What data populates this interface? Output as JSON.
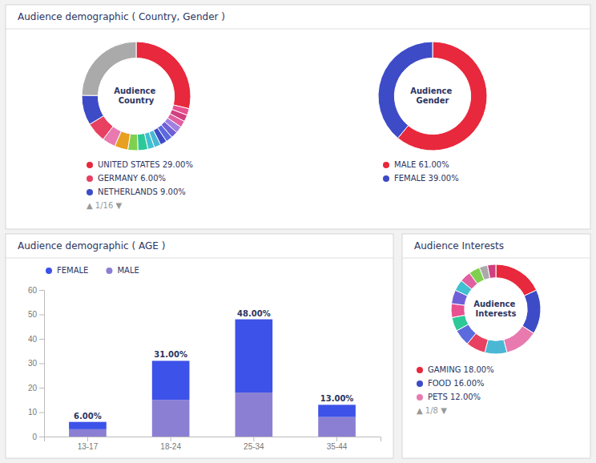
{
  "chart_data": [
    {
      "type": "donut",
      "title": "Audience demographic ( Country, Gender )",
      "categories": [
        "UNITED STATES 29.00%",
        null,
        null,
        null,
        null,
        null,
        null,
        null,
        null,
        null,
        null,
        null,
        null,
        null,
        "GERMANY 6.00%",
        "NETHERLANDS 9.00%",
        null
      ],
      "values": [
        29,
        2,
        2,
        2,
        2,
        2,
        2,
        2,
        2,
        2,
        3,
        3,
        4,
        4,
        6,
        9,
        25
      ],
      "colors": [
        "#e8283c",
        "#e85090",
        "#d04080",
        "#e060a0",
        "#a080e0",
        "#7060d8",
        "#5b6bde",
        "#3d4bc7",
        "#4ab8d4",
        "#40c0d0",
        "#2dc898",
        "#80d050",
        "#e8a020",
        "#e87ab0",
        "#e84060",
        "#3d4bc7",
        "#aaaaaa"
      ],
      "legend": "bottom",
      "annotations": [
        "Audience\nCountry",
        "▲ 1/16 ▼"
      ]
    },
    {
      "type": "donut",
      "categories": [
        "MALE 61.00%",
        "FEMALE 39.00%"
      ],
      "values": [
        61,
        39
      ],
      "colors": [
        "#e8283c",
        "#3d4bc7"
      ],
      "legend": "bottom",
      "annotations": [
        "Audience\nGender"
      ]
    },
    {
      "type": "bar",
      "title": "Audience demographic ( AGE )",
      "categories": [
        "13-17",
        "18-24",
        "25-34",
        "35-44"
      ],
      "stacked": true,
      "series": [
        {
          "name": "MALE",
          "color": "#8b7fd4",
          "values": [
            3,
            15,
            18,
            8
          ]
        },
        {
          "name": "FEMALE",
          "color": "#3d52e8",
          "values": [
            3,
            16,
            30,
            5
          ]
        }
      ],
      "totals": [
        6,
        31,
        48,
        13
      ],
      "total_labels": [
        "6.00%",
        "31.00%",
        "48.00%",
        "13.00%"
      ],
      "ylim": [
        0,
        60
      ],
      "yticks": [
        0,
        10,
        20,
        30,
        40,
        50,
        60
      ],
      "grid": false,
      "legend": "top"
    },
    {
      "type": "donut",
      "title": "Audience Interests",
      "categories": [
        "GAMING 18.00%",
        "FOOD 16.00%",
        "PETS 12.00%",
        null,
        null,
        null,
        null,
        null,
        null,
        null,
        null,
        null,
        null,
        null
      ],
      "values": [
        18,
        16,
        12,
        8,
        7,
        6,
        5,
        5,
        5,
        4,
        4,
        4,
        3,
        3
      ],
      "colors": [
        "#e8283c",
        "#3d4bc7",
        "#e87ab0",
        "#4ab8d4",
        "#e84060",
        "#5b6bde",
        "#2dc898",
        "#e85090",
        "#7060d8",
        "#40c0d0",
        "#e060a0",
        "#80d050",
        "#aaaaaa",
        "#d04080"
      ],
      "legend": "bottom",
      "annotations": [
        "Audience\nInterests",
        "▲ 1/8 ▼"
      ]
    }
  ]
}
